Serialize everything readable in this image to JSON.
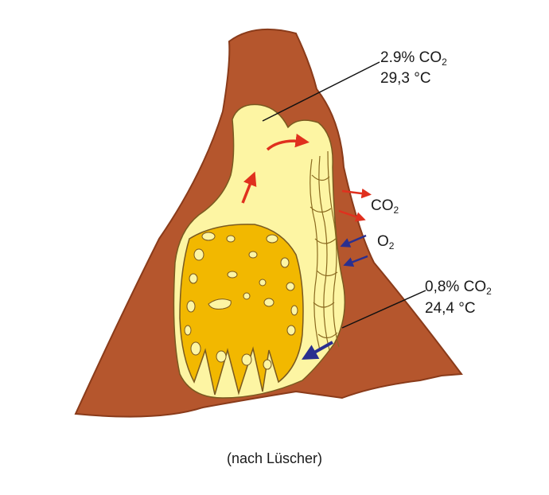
{
  "labels": {
    "top": {
      "percent": "2.9%",
      "gas": "CO",
      "sub": "2",
      "temp": "29,3 °C"
    },
    "bottom": {
      "percent": "0,8%",
      "gas": "CO",
      "sub": "2",
      "temp": "24,4 °C"
    },
    "co2_out": {
      "gas": "CO",
      "sub": "2"
    },
    "o2_in": {
      "gas": "O",
      "sub": "2"
    }
  },
  "caption": "(nach Lüscher)",
  "colors": {
    "mound": "#b5562d",
    "air_channel": "#fdf5a3",
    "nest": "#f2b800",
    "outflow_arrow": "#e0301e",
    "inflow_arrow": "#2a2f8f"
  }
}
